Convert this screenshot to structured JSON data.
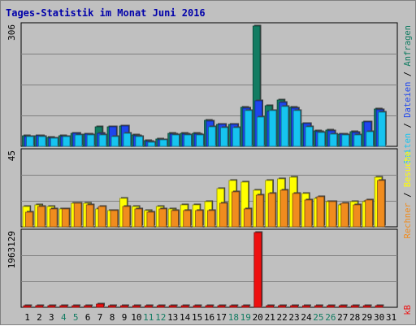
{
  "chart_data": {
    "type": "bar",
    "title": "Tages-Statistik im Monat Juni 2016",
    "colors": {
      "background": "#c0c0c0",
      "plot": "#c0c0c0",
      "grid": "#808080",
      "title": "#0000aa",
      "anfragen": "#127c62",
      "dateien": "#1e46ee",
      "seiten": "#16c4f0",
      "besuche": "#ffff00",
      "rechner": "#f08c1e",
      "kb": "#ee1010",
      "weekend": "#127c62",
      "day_label": "#000000"
    },
    "days": [
      "1",
      "2",
      "3",
      "4",
      "5",
      "6",
      "7",
      "8",
      "9",
      "10",
      "11",
      "12",
      "13",
      "14",
      "15",
      "16",
      "17",
      "18",
      "19",
      "20",
      "21",
      "22",
      "23",
      "24",
      "25",
      "26",
      "27",
      "28",
      "29",
      "30",
      "31"
    ],
    "weekend_days": [
      "4",
      "5",
      "11",
      "12",
      "18",
      "19",
      "25",
      "26"
    ],
    "panels": [
      {
        "id": "hits",
        "max_label": "306",
        "ymax": 306,
        "series": [
          {
            "key": "anfragen",
            "name": "Anfragen",
            "values": [
              26,
              27,
              22,
              26,
              34,
              32,
              49,
              49,
              52,
              28,
              14,
              18,
              33,
              33,
              33,
              66,
              56,
              56,
              99,
              306,
              104,
              118,
              99,
              58,
              39,
              41,
              32,
              37,
              63,
              95,
              null
            ]
          },
          {
            "key": "dateien",
            "name": "Dateien",
            "values": [
              25,
              26,
              21,
              25,
              33,
              31,
              33,
              49,
              52,
              27,
              13,
              17,
              32,
              32,
              32,
              65,
              55,
              55,
              97,
              115,
              88,
              112,
              97,
              57,
              38,
              40,
              31,
              36,
              62,
              94,
              null
            ]
          },
          {
            "key": "seiten",
            "name": "Seiten",
            "values": [
              24,
              24,
              20,
              24,
              28,
              28,
              28,
              24,
              33,
              24,
              11,
              16,
              28,
              28,
              28,
              49,
              48,
              48,
              92,
              75,
              92,
              101,
              92,
              49,
              35,
              31,
              28,
              28,
              38,
              86,
              null
            ]
          }
        ]
      },
      {
        "id": "visits",
        "max_label": "45",
        "ymax": 45,
        "series": [
          {
            "key": "besuche",
            "name": "Besuche",
            "values": [
              12,
              13,
              12,
              11,
              14,
              14,
              11,
              10,
              17,
              12,
              10,
              12,
              11,
              13,
              13,
              15,
              23,
              28,
              27,
              22,
              28,
              29,
              30,
              20,
              17,
              15,
              13,
              15,
              15,
              30,
              null
            ]
          },
          {
            "key": "rechner",
            "name": "Rechner",
            "values": [
              9,
              12,
              11,
              11,
              14,
              13,
              12,
              10,
              12,
              11,
              9,
              11,
              10,
              10,
              10,
              10,
              14,
              21,
              11,
              19,
              20,
              22,
              20,
              16,
              18,
              15,
              14,
              13,
              16,
              28,
              null
            ]
          }
        ]
      },
      {
        "id": "traffic",
        "max_label": "1963129",
        "ymax": 1963129,
        "series": [
          {
            "key": "kb",
            "name": "kB",
            "values": [
              0,
              0,
              0,
              0,
              0,
              0,
              90000,
              20000,
              0,
              0,
              0,
              0,
              0,
              0,
              0,
              0,
              0,
              0,
              0,
              1963129,
              0,
              0,
              0,
              0,
              0,
              0,
              0,
              0,
              0,
              0,
              null
            ]
          }
        ]
      }
    ]
  }
}
